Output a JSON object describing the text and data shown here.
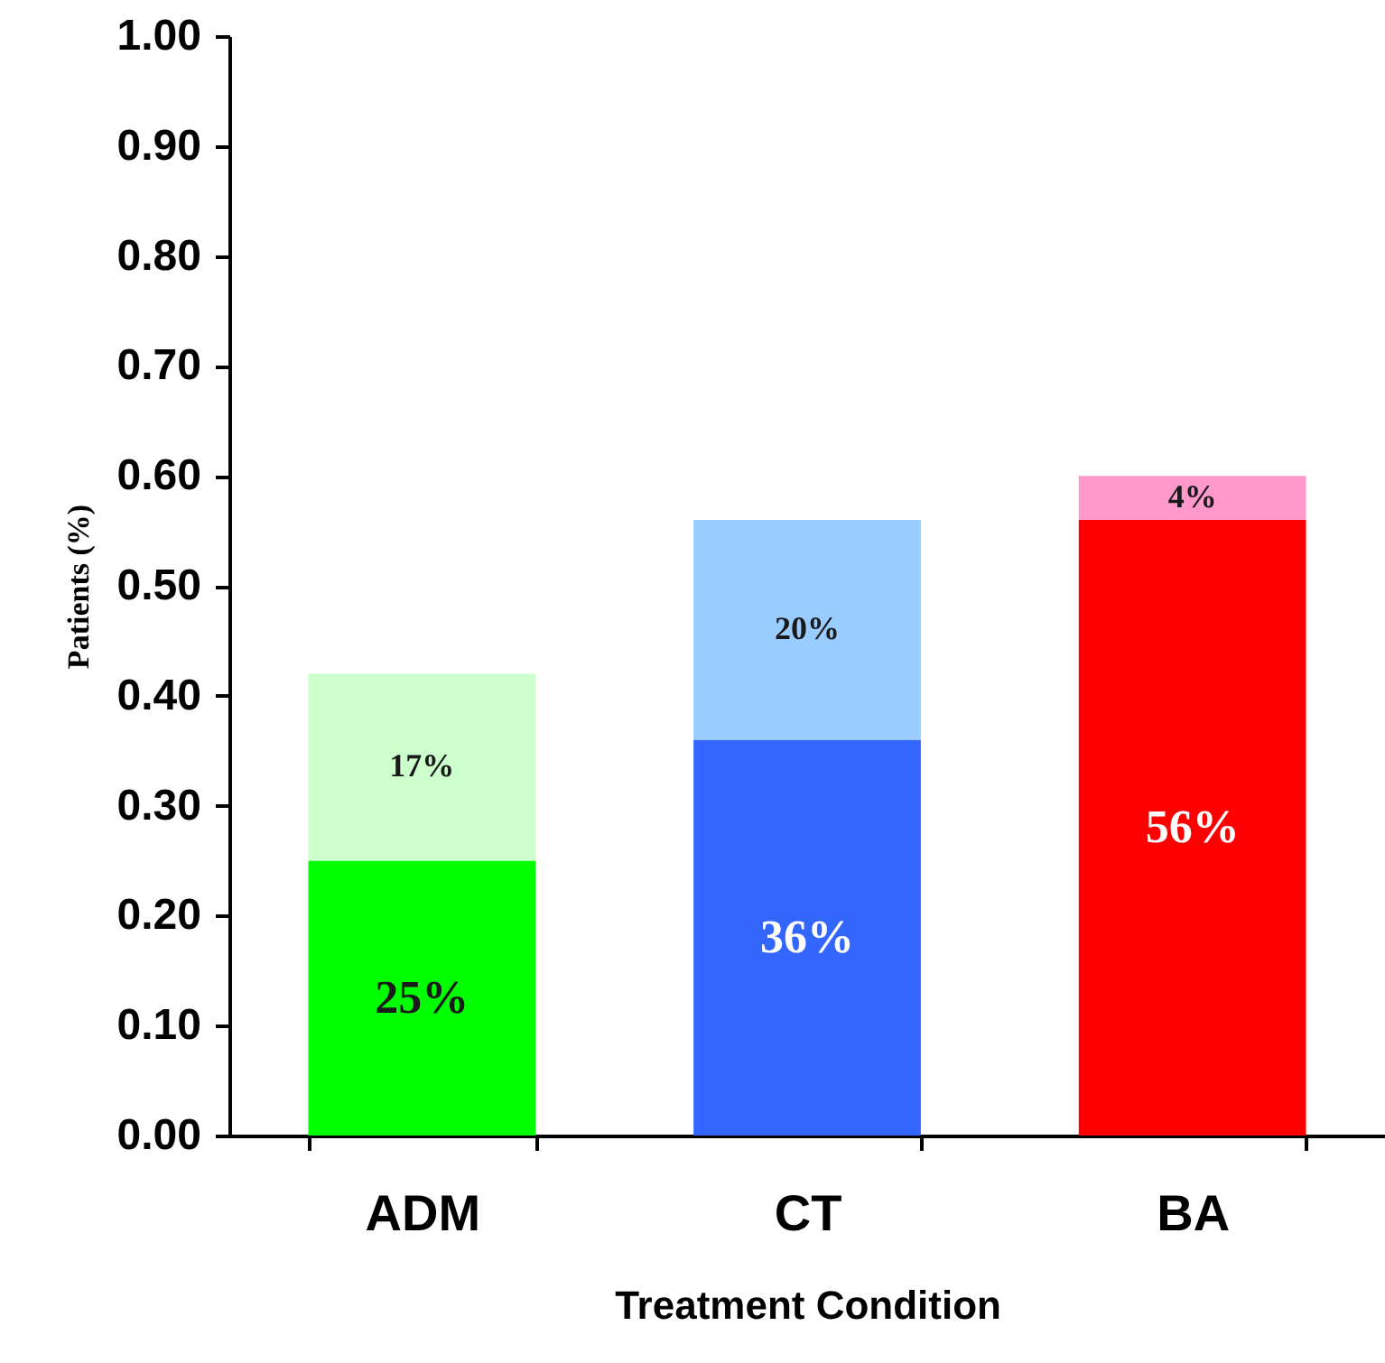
{
  "chart_data": {
    "type": "bar",
    "stacked": true,
    "xlabel": "Treatment Condition",
    "ylabel": "Patients (%)",
    "categories": [
      "ADM",
      "CT",
      "BA"
    ],
    "series": [
      {
        "values": [
          0.25,
          0.36,
          0.56
        ],
        "colors": [
          "#00ff00",
          "#3366ff",
          "#ff0000"
        ],
        "value_labels": [
          "25%",
          "36%",
          "56%"
        ]
      },
      {
        "values": [
          0.17,
          0.2,
          0.04
        ],
        "colors": [
          "#ccffcc",
          "#99ccff",
          "#ff99cc"
        ],
        "value_labels": [
          "17%",
          "20%",
          "4%"
        ]
      }
    ],
    "ylim": [
      0,
      1
    ],
    "yticks": [
      {
        "value": 0,
        "label": "0.00"
      },
      {
        "value": 0.1,
        "label": "0.10"
      },
      {
        "value": 0.2,
        "label": "0.20"
      },
      {
        "value": 0.3,
        "label": "0.30"
      },
      {
        "value": 0.4,
        "label": "0.40"
      },
      {
        "value": 0.5,
        "label": "0.50"
      },
      {
        "value": 0.6,
        "label": "0.60"
      },
      {
        "value": 0.7,
        "label": "0.70"
      },
      {
        "value": 0.8,
        "label": "0.80"
      },
      {
        "value": 0.9,
        "label": "0.90"
      },
      {
        "value": 1,
        "label": "1.00"
      }
    ],
    "grid": false,
    "legend": false
  }
}
